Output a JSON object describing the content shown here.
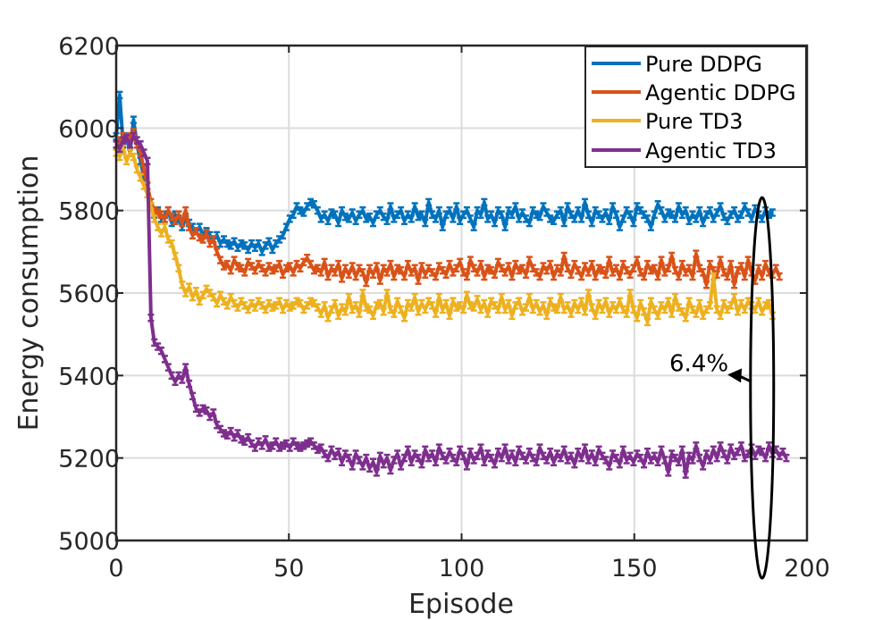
{
  "chart_data": {
    "type": "line",
    "title": "",
    "xlabel": "Episode",
    "ylabel": "Energy consumption",
    "xlim": [
      0,
      200
    ],
    "ylim": [
      5000,
      6200
    ],
    "x_plot_max": 190,
    "xticks": [
      0,
      50,
      100,
      150,
      200
    ],
    "yticks": [
      5000,
      5200,
      5400,
      5600,
      5800,
      6000,
      6200
    ],
    "grid": true,
    "legend_position": "top-right",
    "series": [
      {
        "name": "Pure DDPG",
        "color": "#0072BD",
        "values": [
          5980,
          6080,
          5960,
          5980,
          5940,
          6020,
          5960,
          5920,
          5880,
          5840,
          5810,
          5790,
          5800,
          5780,
          5790,
          5800,
          5770,
          5790,
          5780,
          5760,
          5780,
          5770,
          5760,
          5750,
          5760,
          5740,
          5750,
          5740,
          5730,
          5740,
          5720,
          5730,
          5720,
          5715,
          5725,
          5710,
          5720,
          5715,
          5705,
          5720,
          5710,
          5720,
          5700,
          5715,
          5725,
          5705,
          5720,
          5730,
          5740,
          5760,
          5780,
          5790,
          5810,
          5800,
          5795,
          5810,
          5820,
          5815,
          5800,
          5780,
          5790,
          5775,
          5795,
          5790,
          5770,
          5800,
          5785,
          5780,
          5795,
          5775,
          5790,
          5800,
          5780,
          5785,
          5770,
          5790,
          5800,
          5785,
          5775,
          5810,
          5780,
          5790,
          5800,
          5775,
          5790,
          5780,
          5810,
          5785,
          5790,
          5770,
          5820,
          5790,
          5780,
          5800,
          5760,
          5790,
          5800,
          5780,
          5810,
          5775,
          5790,
          5800,
          5780,
          5760,
          5800,
          5790,
          5820,
          5780,
          5790,
          5770,
          5800,
          5790,
          5760,
          5800,
          5790,
          5810,
          5780,
          5795,
          5780,
          5770,
          5800,
          5790,
          5785,
          5810,
          5795,
          5780,
          5775,
          5790,
          5800,
          5770,
          5810,
          5790,
          5780,
          5800,
          5780,
          5820,
          5790,
          5770,
          5800,
          5790,
          5780,
          5795,
          5775,
          5810,
          5790,
          5760,
          5780,
          5800,
          5790,
          5770,
          5810,
          5800,
          5790,
          5780,
          5760,
          5790,
          5815,
          5800,
          5780,
          5795,
          5790,
          5780,
          5810,
          5790,
          5800,
          5775,
          5790,
          5780,
          5800,
          5770,
          5790,
          5800,
          5780,
          5795,
          5810,
          5785,
          5775,
          5790,
          5800,
          5780,
          5790,
          5810,
          5795,
          5780,
          5805,
          5790,
          5780,
          5800,
          5790,
          5795
        ]
      },
      {
        "name": "Agentic DDPG",
        "color": "#D95319",
        "values": [
          5960,
          5970,
          5980,
          5975,
          5980,
          5990,
          5960,
          5940,
          5900,
          5860,
          5820,
          5800,
          5795,
          5790,
          5780,
          5800,
          5785,
          5775,
          5790,
          5770,
          5800,
          5760,
          5740,
          5750,
          5735,
          5730,
          5745,
          5720,
          5730,
          5700,
          5680,
          5665,
          5670,
          5655,
          5680,
          5665,
          5660,
          5650,
          5675,
          5665,
          5655,
          5670,
          5660,
          5650,
          5665,
          5655,
          5660,
          5670,
          5645,
          5660,
          5665,
          5650,
          5670,
          5660,
          5675,
          5685,
          5670,
          5655,
          5660,
          5650,
          5675,
          5640,
          5660,
          5650,
          5670,
          5635,
          5660,
          5645,
          5665,
          5640,
          5660,
          5650,
          5625,
          5660,
          5645,
          5665,
          5630,
          5660,
          5650,
          5670,
          5640,
          5660,
          5655,
          5640,
          5670,
          5650,
          5660,
          5630,
          5665,
          5645,
          5660,
          5650,
          5640,
          5665,
          5655,
          5645,
          5670,
          5650,
          5660,
          5675,
          5650,
          5640,
          5680,
          5660,
          5650,
          5670,
          5640,
          5660,
          5655,
          5645,
          5675,
          5660,
          5650,
          5665,
          5640,
          5670,
          5655,
          5660,
          5645,
          5680,
          5660,
          5650,
          5640,
          5665,
          5655,
          5670,
          5640,
          5660,
          5650,
          5690,
          5660,
          5645,
          5670,
          5655,
          5640,
          5665,
          5650,
          5670,
          5640,
          5660,
          5655,
          5645,
          5680,
          5650,
          5660,
          5640,
          5670,
          5655,
          5645,
          5660,
          5680,
          5650,
          5640,
          5670,
          5655,
          5660,
          5640,
          5680,
          5650,
          5660,
          5690,
          5655,
          5640,
          5670,
          5650,
          5660,
          5640,
          5695,
          5660,
          5650,
          5620,
          5670,
          5655,
          5645,
          5680,
          5650,
          5640,
          5670,
          5620,
          5655,
          5665,
          5640,
          5680,
          5650,
          5630,
          5660,
          5640,
          5670,
          5650,
          5645,
          5660,
          5640
        ]
      },
      {
        "name": "Pure TD3",
        "color": "#EDB120",
        "values": [
          5940,
          5930,
          5950,
          5920,
          5940,
          5930,
          5900,
          5880,
          5860,
          5840,
          5810,
          5780,
          5760,
          5745,
          5760,
          5730,
          5720,
          5690,
          5660,
          5620,
          5600,
          5615,
          5590,
          5605,
          5580,
          5595,
          5610,
          5600,
          5590,
          5575,
          5595,
          5580,
          5570,
          5590,
          5575,
          5565,
          5580,
          5570,
          5560,
          5575,
          5565,
          5580,
          5570,
          5560,
          5575,
          5565,
          5570,
          5580,
          5560,
          5575,
          5565,
          5570,
          5580,
          5575,
          5560,
          5570,
          5580,
          5575,
          5565,
          5550,
          5570,
          5540,
          5560,
          5575,
          5545,
          5565,
          5555,
          5590,
          5560,
          5570,
          5550,
          5600,
          5565,
          5560,
          5545,
          5570,
          5575,
          5555,
          5600,
          5560,
          5550,
          5580,
          5560,
          5540,
          5575,
          5565,
          5590,
          5555,
          5575,
          5560,
          5580,
          5570,
          5550,
          5590,
          5560,
          5575,
          5545,
          5580,
          5565,
          5570,
          5560,
          5595,
          5570,
          5565,
          5585,
          5560,
          5575,
          5550,
          5580,
          5570,
          5560,
          5590,
          5560,
          5575,
          5545,
          5570,
          5580,
          5555,
          5565,
          5590,
          5560,
          5575,
          5555,
          5570,
          5545,
          5580,
          5565,
          5560,
          5590,
          5560,
          5570,
          5550,
          5575,
          5560,
          5580,
          5555,
          5600,
          5565,
          5545,
          5575,
          5560,
          5580,
          5550,
          5570,
          5560,
          5580,
          5560,
          5550,
          5600,
          5560,
          5540,
          5575,
          5555,
          5530,
          5580,
          5560,
          5545,
          5570,
          5560,
          5580,
          5550,
          5590,
          5565,
          5555,
          5540,
          5580,
          5560,
          5550,
          5575,
          5545,
          5560,
          5570,
          5640,
          5560,
          5545,
          5575,
          5560,
          5570,
          5590,
          5555,
          5575,
          5560,
          5580,
          5570,
          5560,
          5580,
          5555,
          5570,
          5575,
          5545
        ]
      },
      {
        "name": "Agentic TD3",
        "color": "#7E2F8E",
        "values": [
          5960,
          5950,
          5970,
          5975,
          5960,
          5980,
          5970,
          5960,
          5940,
          5920,
          5540,
          5480,
          5470,
          5460,
          5440,
          5420,
          5400,
          5385,
          5400,
          5390,
          5420,
          5380,
          5350,
          5320,
          5310,
          5320,
          5315,
          5300,
          5310,
          5280,
          5270,
          5260,
          5255,
          5265,
          5250,
          5260,
          5245,
          5240,
          5250,
          5235,
          5225,
          5240,
          5230,
          5245,
          5225,
          5230,
          5240,
          5225,
          5230,
          5235,
          5225,
          5240,
          5230,
          5225,
          5230,
          5235,
          5240,
          5230,
          5220,
          5225,
          5210,
          5200,
          5220,
          5205,
          5215,
          5190,
          5210,
          5200,
          5180,
          5210,
          5195,
          5180,
          5200,
          5175,
          5190,
          5165,
          5205,
          5185,
          5200,
          5170,
          5195,
          5210,
          5180,
          5200,
          5220,
          5190,
          5210,
          5200,
          5185,
          5220,
          5200,
          5210,
          5190,
          5225,
          5205,
          5195,
          5215,
          5200,
          5190,
          5220,
          5205,
          5180,
          5215,
          5195,
          5205,
          5225,
          5190,
          5210,
          5200,
          5185,
          5215,
          5200,
          5225,
          5195,
          5210,
          5190,
          5220,
          5205,
          5195,
          5215,
          5200,
          5190,
          5225,
          5205,
          5195,
          5215,
          5190,
          5210,
          5200,
          5220,
          5195,
          5205,
          5185,
          5215,
          5200,
          5225,
          5195,
          5210,
          5190,
          5220,
          5205,
          5195,
          5180,
          5210,
          5200,
          5185,
          5220,
          5195,
          5205,
          5190,
          5210,
          5200,
          5185,
          5215,
          5195,
          5205,
          5190,
          5220,
          5195,
          5165,
          5210,
          5200,
          5190,
          5220,
          5160,
          5205,
          5195,
          5230,
          5200,
          5180,
          5210,
          5195,
          5220,
          5200,
          5230,
          5210,
          5195,
          5225,
          5205,
          5215,
          5230,
          5200,
          5210,
          5225,
          5205,
          5220,
          5215,
          5200,
          5230,
          5210,
          5220,
          5205,
          5215,
          5200
        ]
      }
    ],
    "annotations": [
      {
        "text": "6.4%",
        "arrow_to": [
          177,
          5402
        ],
        "ellipse_center": [
          187,
          5370
        ]
      }
    ]
  }
}
